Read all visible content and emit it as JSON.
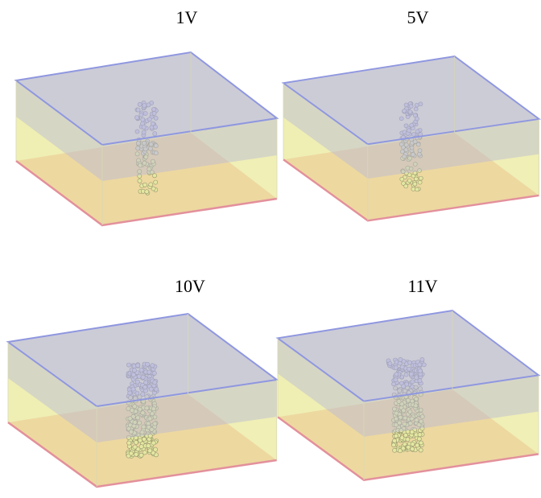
{
  "panels": [
    {
      "label": "1V"
    },
    {
      "label": "5V"
    },
    {
      "label": "10V"
    },
    {
      "label": "11V"
    }
  ]
}
